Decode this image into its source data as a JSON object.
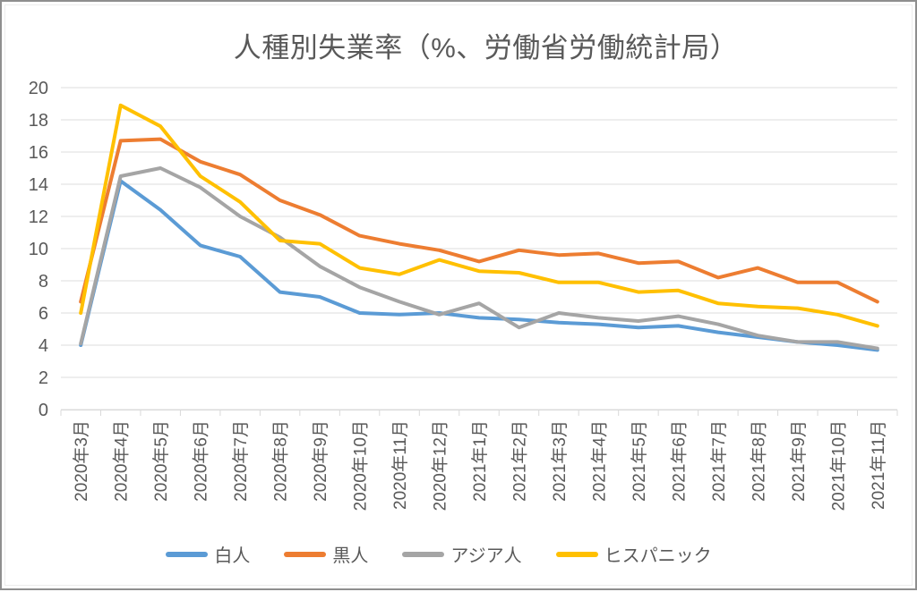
{
  "accent_colors": {
    "text_gray": "#595959",
    "gridline": "#dcdcdc",
    "axis": "#d9d9d9"
  },
  "chart_data": {
    "type": "line",
    "title": "人種別失業率（%、労働省労働統計局）",
    "xlabel": "",
    "ylabel": "",
    "ylim": [
      0,
      20
    ],
    "yticks": [
      0,
      2,
      4,
      6,
      8,
      10,
      12,
      14,
      16,
      18,
      20
    ],
    "grid": true,
    "legend_position": "bottom",
    "categories": [
      "2020年3月",
      "2020年4月",
      "2020年5月",
      "2020年6月",
      "2020年7月",
      "2020年8月",
      "2020年9月",
      "2020年10月",
      "2020年11月",
      "2020年12月",
      "2021年1月",
      "2021年2月",
      "2021年3月",
      "2021年4月",
      "2021年5月",
      "2021年6月",
      "2021年7月",
      "2021年8月",
      "2021年9月",
      "2021年10月",
      "2021年11月"
    ],
    "series": [
      {
        "id": "white",
        "name": "白人",
        "color": "#5B9BD5",
        "values": [
          4.0,
          14.2,
          12.4,
          10.2,
          9.5,
          7.3,
          7.0,
          6.0,
          5.9,
          6.0,
          5.7,
          5.6,
          5.4,
          5.3,
          5.1,
          5.2,
          4.8,
          4.5,
          4.2,
          4.0,
          3.7
        ]
      },
      {
        "id": "black",
        "name": "黒人",
        "color": "#ED7D31",
        "values": [
          6.7,
          16.7,
          16.8,
          15.4,
          14.6,
          13.0,
          12.1,
          10.8,
          10.3,
          9.9,
          9.2,
          9.9,
          9.6,
          9.7,
          9.1,
          9.2,
          8.2,
          8.8,
          7.9,
          7.9,
          6.7
        ]
      },
      {
        "id": "asian",
        "name": "アジア人",
        "color": "#A5A5A5",
        "values": [
          4.1,
          14.5,
          15.0,
          13.8,
          12.0,
          10.7,
          8.9,
          7.6,
          6.7,
          5.9,
          6.6,
          5.1,
          6.0,
          5.7,
          5.5,
          5.8,
          5.3,
          4.6,
          4.2,
          4.2,
          3.8
        ]
      },
      {
        "id": "hispanic",
        "name": "ヒスパニック",
        "color": "#FFC000",
        "values": [
          6.0,
          18.9,
          17.6,
          14.5,
          12.9,
          10.5,
          10.3,
          8.8,
          8.4,
          9.3,
          8.6,
          8.5,
          7.9,
          7.9,
          7.3,
          7.4,
          6.6,
          6.4,
          6.3,
          5.9,
          5.2
        ]
      }
    ]
  }
}
